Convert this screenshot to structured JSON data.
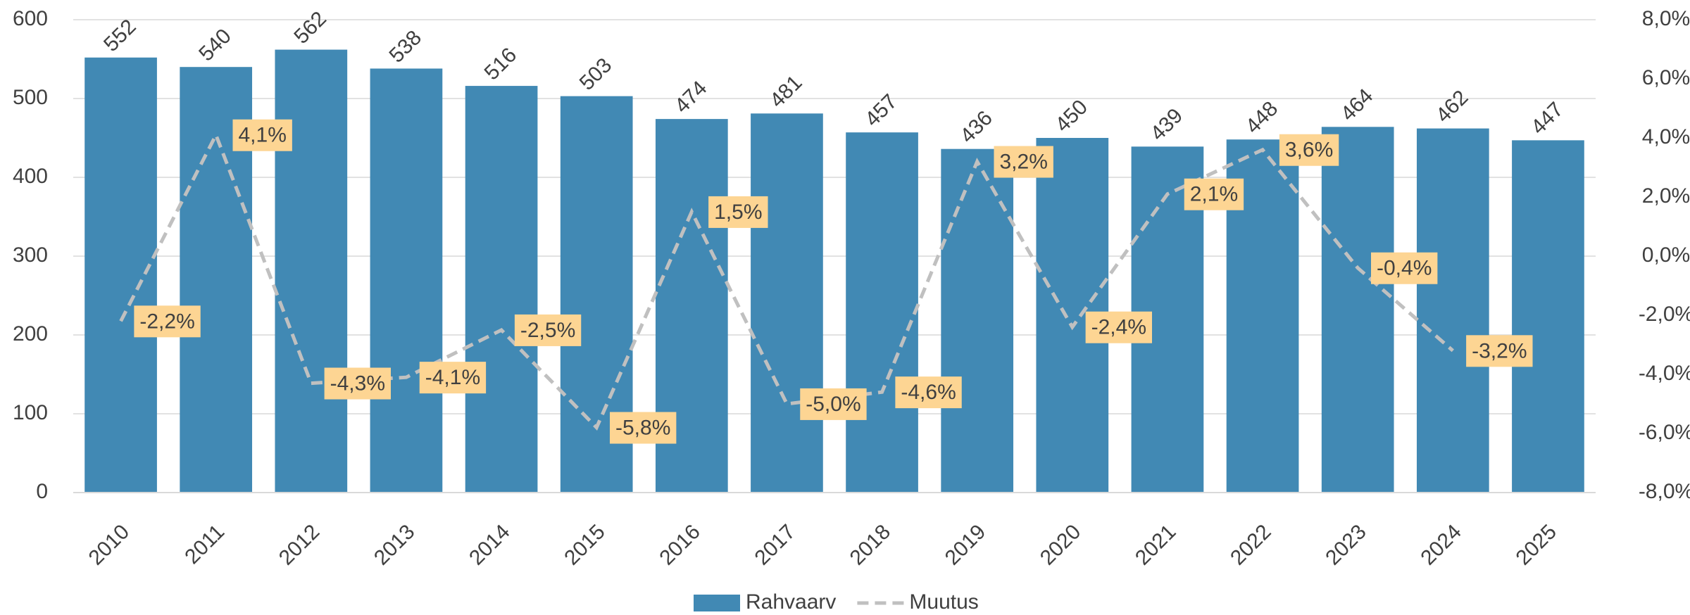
{
  "chart_data": {
    "type": "bar",
    "categories": [
      "2010",
      "2011",
      "2012",
      "2013",
      "2014",
      "2015",
      "2016",
      "2017",
      "2018",
      "2019",
      "2020",
      "2021",
      "2022",
      "2023",
      "2024",
      "2025"
    ],
    "series": [
      {
        "name": "Rahvaarv",
        "color": "#4189b4",
        "values": [
          552,
          540,
          562,
          538,
          516,
          503,
          474,
          481,
          457,
          436,
          450,
          439,
          448,
          464,
          462,
          447
        ]
      },
      {
        "name": "Muutus",
        "type": "line",
        "axis": "y2",
        "color": "#c0c0c0",
        "label_color": "#fdd593",
        "values": [
          -2.2,
          4.1,
          -4.3,
          -4.1,
          -2.5,
          -5.8,
          1.5,
          -5.0,
          -4.6,
          3.2,
          -2.4,
          2.1,
          3.6,
          -0.4,
          -3.2,
          null
        ],
        "value_labels": [
          "-2,2%",
          "4,1%",
          "-4,3%",
          "-4,1%",
          "-2,5%",
          "-5,8%",
          "1,5%",
          "-5,0%",
          "-4,6%",
          "3,2%",
          "-2,4%",
          "2,1%",
          "3,6%",
          "-0,4%",
          "-3,2%",
          null
        ]
      }
    ],
    "ylim": [
      0,
      600
    ],
    "yticks": [
      0,
      100,
      200,
      300,
      400,
      500,
      600
    ],
    "y2lim": [
      -8,
      8
    ],
    "y2ticks": [
      {
        "value": -8,
        "label": "-8,0%"
      },
      {
        "value": -6,
        "label": "-6,0%"
      },
      {
        "value": -4,
        "label": "-4,0%"
      },
      {
        "value": -2,
        "label": "-2,0%"
      },
      {
        "value": 0,
        "label": "0,0%"
      },
      {
        "value": 2,
        "label": "2,0%"
      },
      {
        "value": 4,
        "label": "4,0%"
      },
      {
        "value": 6,
        "label": "6,0%"
      },
      {
        "value": 8,
        "label": "8,0%"
      }
    ],
    "grid": true,
    "legend": "bottom"
  }
}
